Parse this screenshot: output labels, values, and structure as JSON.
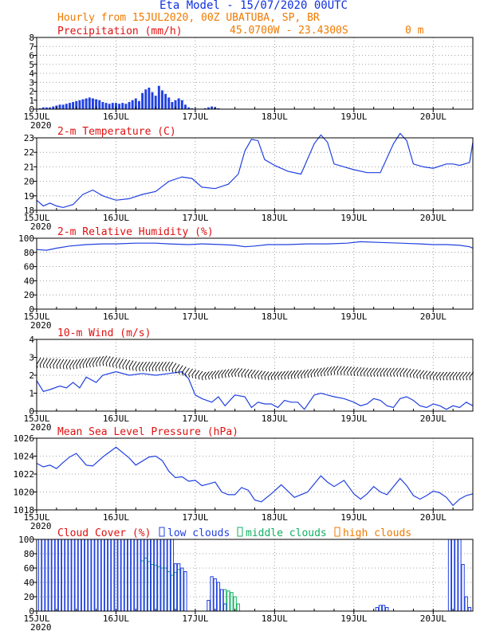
{
  "header": {
    "title": "Eta Model - 15/07/2020 00UTC",
    "subtitle": "Hourly from 15JUL2020, 00Z  UBATUBA, SP, BR",
    "coords": "45.0700W - 23.4300S",
    "elevation": "0  m"
  },
  "colors": {
    "header_blue": "#1030e0",
    "header_orange": "#f07a00",
    "panel_title": "#e01010",
    "series_blue": "#2040e0",
    "bar_blue": "#2040e0",
    "wind_black": "#000000",
    "mid_cloud": "#10b060",
    "grid": "#888888"
  },
  "chart_data": [
    {
      "id": "precip",
      "type": "bar",
      "title": "Precipitation (mm/h)",
      "ylim": [
        0,
        8
      ],
      "yticks": [
        0,
        1,
        2,
        3,
        4,
        5,
        6,
        7,
        8
      ],
      "xlim_hours": [
        0,
        132
      ],
      "xtick_labels": [
        "15JUL",
        "16JUL",
        "17JUL",
        "18JUL",
        "19JUL",
        "20JUL"
      ],
      "xtick_hours": [
        0,
        24,
        48,
        72,
        96,
        120
      ],
      "year_label": "2020",
      "start_hour": 1,
      "values": [
        0.1,
        0.2,
        0.2,
        0.2,
        0.3,
        0.4,
        0.5,
        0.5,
        0.6,
        0.7,
        0.8,
        0.9,
        1.0,
        1.1,
        1.2,
        1.3,
        1.2,
        1.1,
        1.0,
        0.8,
        0.7,
        0.6,
        0.7,
        0.7,
        0.6,
        0.7,
        0.6,
        0.8,
        1.0,
        1.2,
        0.9,
        1.8,
        2.2,
        2.4,
        1.9,
        1.5,
        2.6,
        2.1,
        1.7,
        1.3,
        0.8,
        1.0,
        1.2,
        1.0,
        0.5,
        0.2,
        0.1,
        0.05,
        0.05,
        0.05,
        0.1,
        0.2,
        0.3,
        0.2,
        0.1,
        0.05
      ]
    },
    {
      "id": "temperature",
      "type": "line",
      "title": "2-m Temperature (C)",
      "ylim": [
        18,
        23
      ],
      "yticks": [
        18,
        19,
        20,
        21,
        22,
        23
      ],
      "xlim_hours": [
        0,
        132
      ],
      "xtick_labels": [
        "15JUL",
        "16JUL",
        "17JUL",
        "18JUL",
        "19JUL",
        "20JUL"
      ],
      "xtick_hours": [
        0,
        24,
        48,
        72,
        96,
        120
      ],
      "year_label": "2020",
      "x": [
        0,
        2,
        4,
        6,
        8,
        11,
        14,
        17,
        20,
        24,
        28,
        32,
        36,
        40,
        44,
        47,
        50,
        54,
        58,
        61,
        63,
        65,
        67,
        69,
        72,
        76,
        80,
        84,
        86,
        88,
        90,
        93,
        96,
        100,
        104,
        108,
        110,
        112,
        114,
        117,
        120,
        124,
        126,
        128,
        131,
        132
      ],
      "values": [
        18.7,
        18.3,
        18.5,
        18.3,
        18.2,
        18.4,
        19.1,
        19.4,
        19.0,
        18.7,
        18.8,
        19.1,
        19.3,
        20.0,
        20.3,
        20.2,
        19.6,
        19.5,
        19.8,
        20.5,
        22.1,
        22.9,
        22.8,
        21.5,
        21.1,
        20.7,
        20.5,
        22.6,
        23.2,
        22.7,
        21.2,
        21.0,
        20.8,
        20.6,
        20.6,
        22.6,
        23.3,
        22.8,
        21.2,
        21.0,
        20.9,
        21.2,
        21.2,
        21.1,
        21.3,
        22.7
      ]
    },
    {
      "id": "humidity",
      "type": "line",
      "title": "2-m Relative Humidity (%)",
      "ylim": [
        0,
        100
      ],
      "yticks": [
        0,
        20,
        40,
        60,
        80,
        100
      ],
      "xlim_hours": [
        0,
        132
      ],
      "xtick_labels": [
        "15JUL",
        "16JUL",
        "17JUL",
        "18JUL",
        "19JUL",
        "20JUL"
      ],
      "xtick_hours": [
        0,
        24,
        48,
        72,
        96,
        120
      ],
      "year_label": "2020",
      "x": [
        0,
        3,
        6,
        10,
        15,
        20,
        24,
        30,
        36,
        40,
        46,
        50,
        56,
        60,
        63,
        66,
        70,
        76,
        82,
        88,
        94,
        98,
        104,
        110,
        116,
        120,
        124,
        128,
        131,
        132
      ],
      "values": [
        84,
        83,
        86,
        89,
        91,
        92,
        92,
        93,
        93,
        92,
        91,
        92,
        91,
        90,
        88,
        89,
        91,
        91,
        92,
        92,
        93,
        95,
        94,
        93,
        92,
        91,
        91,
        90,
        88,
        86
      ]
    },
    {
      "id": "wind",
      "type": "line",
      "title": "10-m Wind (m/s)",
      "ylim": [
        0,
        4
      ],
      "yticks": [
        0,
        1,
        2,
        3,
        4
      ],
      "xlim_hours": [
        0,
        132
      ],
      "xtick_labels": [
        "15JUL",
        "16JUL",
        "17JUL",
        "18JUL",
        "19JUL",
        "20JUL"
      ],
      "xtick_hours": [
        0,
        24,
        48,
        72,
        96,
        120
      ],
      "year_label": "2020",
      "x": [
        0,
        2,
        4,
        7,
        9,
        11,
        13,
        15,
        18,
        20,
        24,
        28,
        32,
        36,
        40,
        44,
        46,
        48,
        50,
        53,
        55,
        57,
        60,
        63,
        65,
        67,
        69,
        71,
        73,
        75,
        77,
        79,
        81,
        84,
        86,
        88,
        90,
        93,
        96,
        98,
        100,
        102,
        104,
        106,
        108,
        110,
        112,
        114,
        116,
        118,
        120,
        122,
        124,
        126,
        128,
        130,
        132
      ],
      "values": [
        1.7,
        1.1,
        1.2,
        1.4,
        1.3,
        1.6,
        1.3,
        1.9,
        1.6,
        2.0,
        2.2,
        2.0,
        2.1,
        2.0,
        2.1,
        2.2,
        1.8,
        0.9,
        0.7,
        0.5,
        0.8,
        0.3,
        0.9,
        0.8,
        0.2,
        0.5,
        0.4,
        0.4,
        0.2,
        0.6,
        0.5,
        0.5,
        0.1,
        0.9,
        1.0,
        0.9,
        0.8,
        0.7,
        0.5,
        0.3,
        0.4,
        0.7,
        0.6,
        0.3,
        0.2,
        0.7,
        0.8,
        0.6,
        0.3,
        0.2,
        0.4,
        0.3,
        0.1,
        0.3,
        0.2,
        0.5,
        0.3
      ],
      "barb_speed_track": {
        "x": [
          0,
          10,
          20,
          30,
          40,
          45,
          50,
          60,
          70,
          80,
          90,
          100,
          110,
          120,
          132
        ],
        "values": [
          2.6,
          2.5,
          2.7,
          2.4,
          2.4,
          2.1,
          1.9,
          2.1,
          1.9,
          2.0,
          2.2,
          2.1,
          2.1,
          1.9,
          1.9
        ]
      }
    },
    {
      "id": "pressure",
      "type": "line",
      "title": "Mean Sea Level Pressure (hPa)",
      "ylim": [
        1018,
        1026
      ],
      "yticks": [
        1018,
        1020,
        1022,
        1024,
        1026
      ],
      "xlim_hours": [
        0,
        132
      ],
      "xtick_labels": [
        "15JUL",
        "16JUL",
        "17JUL",
        "18JUL",
        "19JUL",
        "20JUL"
      ],
      "xtick_hours": [
        0,
        24,
        48,
        72,
        96,
        120
      ],
      "year_label": "2020",
      "x": [
        0,
        2,
        4,
        6,
        8,
        10,
        12,
        15,
        17,
        20,
        24,
        28,
        30,
        34,
        36,
        38,
        40,
        42,
        44,
        46,
        48,
        50,
        52,
        54,
        56,
        58,
        60,
        62,
        64,
        66,
        68,
        71,
        74,
        78,
        82,
        86,
        88,
        90,
        93,
        96,
        98,
        100,
        102,
        104,
        106,
        108,
        110,
        112,
        114,
        116,
        118,
        120,
        122,
        124,
        126,
        128,
        130,
        132
      ],
      "values": [
        1023.2,
        1022.8,
        1023.0,
        1022.6,
        1023.3,
        1023.9,
        1024.3,
        1023.0,
        1022.9,
        1023.9,
        1025.0,
        1023.8,
        1023.0,
        1023.9,
        1024.0,
        1023.5,
        1022.3,
        1021.6,
        1021.7,
        1021.2,
        1021.3,
        1020.7,
        1020.9,
        1021.1,
        1020.0,
        1019.7,
        1019.7,
        1020.5,
        1020.2,
        1019.1,
        1018.9,
        1019.8,
        1020.8,
        1019.4,
        1020.0,
        1021.8,
        1021.1,
        1020.6,
        1021.3,
        1019.8,
        1019.2,
        1019.8,
        1020.6,
        1020.0,
        1019.7,
        1020.6,
        1021.5,
        1020.7,
        1019.6,
        1019.2,
        1019.6,
        1020.1,
        1019.9,
        1019.4,
        1018.5,
        1019.2,
        1019.6,
        1019.8
      ]
    },
    {
      "id": "clouds",
      "type": "bar",
      "title": "Cloud Cover (%)",
      "legend": [
        {
          "label": "low clouds",
          "key": "low",
          "color": "#2040e0"
        },
        {
          "label": "middle clouds",
          "key": "mid",
          "color": "#10b060"
        },
        {
          "label": "high clouds",
          "key": "high",
          "color": "#f07a00"
        }
      ],
      "ylim": [
        0,
        100
      ],
      "yticks": [
        0,
        20,
        40,
        60,
        80,
        100
      ],
      "xlim_hours": [
        0,
        132
      ],
      "xtick_labels": [
        "15JUL",
        "16JUL",
        "17JUL",
        "18JUL",
        "19JUL",
        "20JUL"
      ],
      "xtick_hours": [
        0,
        24,
        48,
        72,
        96,
        120
      ],
      "year_label": "2020",
      "low_start_hour": 1,
      "low": [
        100,
        100,
        100,
        100,
        100,
        100,
        100,
        100,
        100,
        100,
        100,
        100,
        100,
        100,
        100,
        100,
        100,
        100,
        100,
        100,
        100,
        100,
        100,
        100,
        100,
        100,
        100,
        100,
        100,
        100,
        100,
        100,
        100,
        100,
        100,
        100,
        100,
        100,
        100,
        100,
        100,
        66,
        66,
        60,
        55,
        0,
        0,
        0,
        0,
        0,
        0,
        15,
        48,
        45,
        40,
        30,
        10,
        0
      ],
      "mid_start_hour": 32,
      "mid": [
        70,
        74,
        69,
        65,
        64,
        62,
        60,
        60,
        55,
        50,
        54,
        58,
        60,
        0,
        0,
        0,
        0,
        0,
        0,
        0,
        0,
        0,
        0,
        0,
        0,
        30,
        28,
        26,
        20,
        10,
        0
      ],
      "extra_low": [
        {
          "hour": 103,
          "value": 5
        },
        {
          "hour": 104,
          "value": 8
        },
        {
          "hour": 105,
          "value": 8
        },
        {
          "hour": 106,
          "value": 5
        },
        {
          "hour": 125,
          "value": 100
        },
        {
          "hour": 126,
          "value": 100
        },
        {
          "hour": 127,
          "value": 100
        },
        {
          "hour": 128,
          "value": 100
        },
        {
          "hour": 129,
          "value": 65
        },
        {
          "hour": 130,
          "value": 20
        },
        {
          "hour": 131,
          "value": 5
        }
      ]
    }
  ]
}
